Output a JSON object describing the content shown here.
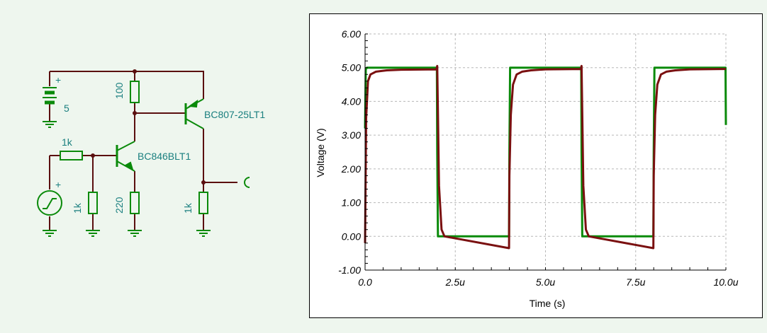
{
  "schematic": {
    "battery_label": "5",
    "plus_sign": "+",
    "r_input_label": "1k",
    "r_base_gnd_label": "1k",
    "r_collector_label": "100",
    "r_emitter_label": "220",
    "r_load_label": "1k",
    "q1_label": "BC846BLT1",
    "q2_label": "BC807-25LT1",
    "colors": {
      "wire": "#5a0f0f",
      "component": "#0a8a0a",
      "label": "#1a7f7f"
    }
  },
  "chart_data": {
    "type": "line",
    "xlabel": "Time (s)",
    "ylabel": "Voltage (V)",
    "xlim": [
      0,
      10
    ],
    "ylim": [
      -1,
      6
    ],
    "x_unit_suffix": "u",
    "xticks": [
      0,
      2.5,
      5,
      7.5,
      10
    ],
    "xtick_labels": [
      "0.0",
      "2.5u",
      "5.0u",
      "7.5u",
      "10.0u"
    ],
    "yticks": [
      -1,
      0,
      1,
      2,
      3,
      4,
      5,
      6
    ],
    "ytick_labels": [
      "-1.00",
      "0.00",
      "1.00",
      "2.00",
      "3.00",
      "4.00",
      "5.00",
      "6.00"
    ],
    "grid": true,
    "series": [
      {
        "color": "#0a8a0a",
        "x": [
          0,
          0.02,
          0.05,
          1.99,
          2.0,
          2.02,
          3.99,
          4.0,
          4.02,
          5.99,
          6.0,
          6.02,
          7.99,
          8.0,
          8.02,
          9.99,
          10.0
        ],
        "y": [
          3.2,
          4.95,
          5.0,
          5.0,
          2.5,
          0.0,
          0.0,
          2.5,
          5.0,
          5.0,
          2.5,
          0.0,
          0.0,
          2.5,
          5.0,
          5.0,
          3.3
        ]
      },
      {
        "color": "#7a1010",
        "x": [
          0,
          0.03,
          0.08,
          0.15,
          0.3,
          0.6,
          1.0,
          1.98,
          2.0,
          2.05,
          2.12,
          2.2,
          3.99,
          4.0,
          4.04,
          4.1,
          4.2,
          4.35,
          4.6,
          5.0,
          5.98,
          6.0,
          6.05,
          6.12,
          6.2,
          7.99,
          8.0,
          8.04,
          8.1,
          8.2,
          8.35,
          8.6,
          9.0,
          10.0
        ],
        "y": [
          -0.2,
          3.5,
          4.6,
          4.8,
          4.88,
          4.92,
          4.94,
          4.95,
          5.05,
          1.5,
          0.2,
          0.0,
          -0.35,
          1.8,
          3.6,
          4.5,
          4.8,
          4.88,
          4.92,
          4.95,
          4.96,
          5.05,
          1.5,
          0.2,
          0.0,
          -0.35,
          1.8,
          3.6,
          4.5,
          4.8,
          4.88,
          4.92,
          4.95,
          4.96
        ]
      }
    ]
  }
}
